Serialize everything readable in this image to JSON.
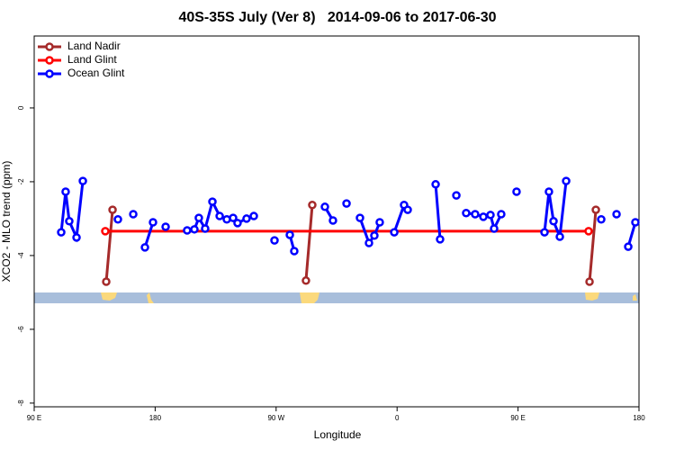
{
  "chart_data": {
    "type": "line",
    "title": "40S-35S July (Ver 8)   2014-09-06 to 2017-06-30",
    "x_label": "Longitude",
    "y_label": "XCO2 - MLO trend (ppm)",
    "xlim": [
      90,
      540
    ],
    "ylim": [
      -8.1,
      1.95
    ],
    "xticks": [
      {
        "value": 90,
        "label": "90 E"
      },
      180,
      {
        "value": 270,
        "label": "90 W"
      },
      {
        "value": 360,
        "label": "0"
      },
      {
        "value": 450,
        "label": "90 E"
      },
      {
        "value": 540,
        "label": "180"
      }
    ],
    "yticks": [
      0,
      -2,
      -4,
      -6,
      -8
    ],
    "legend": "topleft",
    "series": [
      {
        "name": "Land Nadir",
        "color": "#a52a2a",
        "x": [
          143.6,
          148.3,
          null,
          292.2,
          296.9,
          null,
          503.2,
          507.9
        ],
        "values": [
          -4.71,
          -2.76,
          null,
          -4.68,
          -2.63,
          null,
          -4.71,
          -2.76
        ]
      },
      {
        "name": "Land Glint",
        "color": "#ff0000",
        "x": [
          142.9,
          502.5
        ],
        "values": [
          -3.34,
          -3.34
        ]
      },
      {
        "name": "Ocean Glint",
        "color": "#0000ff",
        "x": [
          110.1,
          113.4,
          116.1,
          121.5,
          126.2,
          null,
          152.3,
          null,
          163.7,
          null,
          172.4,
          178.4,
          null,
          187.8,
          null,
          203.8,
          209.2,
          212.5,
          217.2,
          222.6,
          228.0,
          233.3,
          238.0,
          241.3,
          248.0,
          253.4,
          null,
          268.8,
          null,
          280.2,
          283.5,
          null,
          306.3,
          312.3,
          null,
          322.4,
          null,
          332.4,
          339.1,
          343.1,
          347.1,
          null,
          357.9,
          365.2,
          367.9,
          null,
          388.7,
          392.0,
          null,
          404.1,
          null,
          411.4,
          418.1,
          424.2,
          429.5,
          432.2,
          437.5,
          null,
          448.9,
          null,
          469.7,
          473.0,
          476.4,
          481.1,
          485.8,
          null,
          511.9,
          null,
          523.3,
          null,
          532.0,
          537.3
        ],
        "values": [
          -3.37,
          -2.27,
          -3.07,
          -3.51,
          -1.98,
          null,
          -3.02,
          null,
          -2.88,
          null,
          -3.78,
          -3.1,
          null,
          -3.22,
          null,
          -3.32,
          -3.29,
          -2.98,
          -3.27,
          -2.54,
          -2.93,
          -3.02,
          -2.98,
          -3.12,
          -3.0,
          -2.93,
          null,
          -3.59,
          null,
          -3.44,
          -3.88,
          null,
          -2.68,
          -3.05,
          null,
          -2.59,
          null,
          -2.98,
          -3.66,
          -3.46,
          -3.1,
          null,
          -3.37,
          -2.63,
          -2.76,
          null,
          -2.07,
          -3.56,
          null,
          -2.37,
          null,
          -2.85,
          -2.88,
          -2.95,
          -2.9,
          -3.27,
          -2.88,
          null,
          -2.27,
          null,
          -3.37,
          -2.27,
          -3.07,
          -3.49,
          -1.98,
          null,
          -3.02,
          null,
          -2.88,
          null,
          -3.76,
          -3.1
        ]
      }
    ]
  }
}
